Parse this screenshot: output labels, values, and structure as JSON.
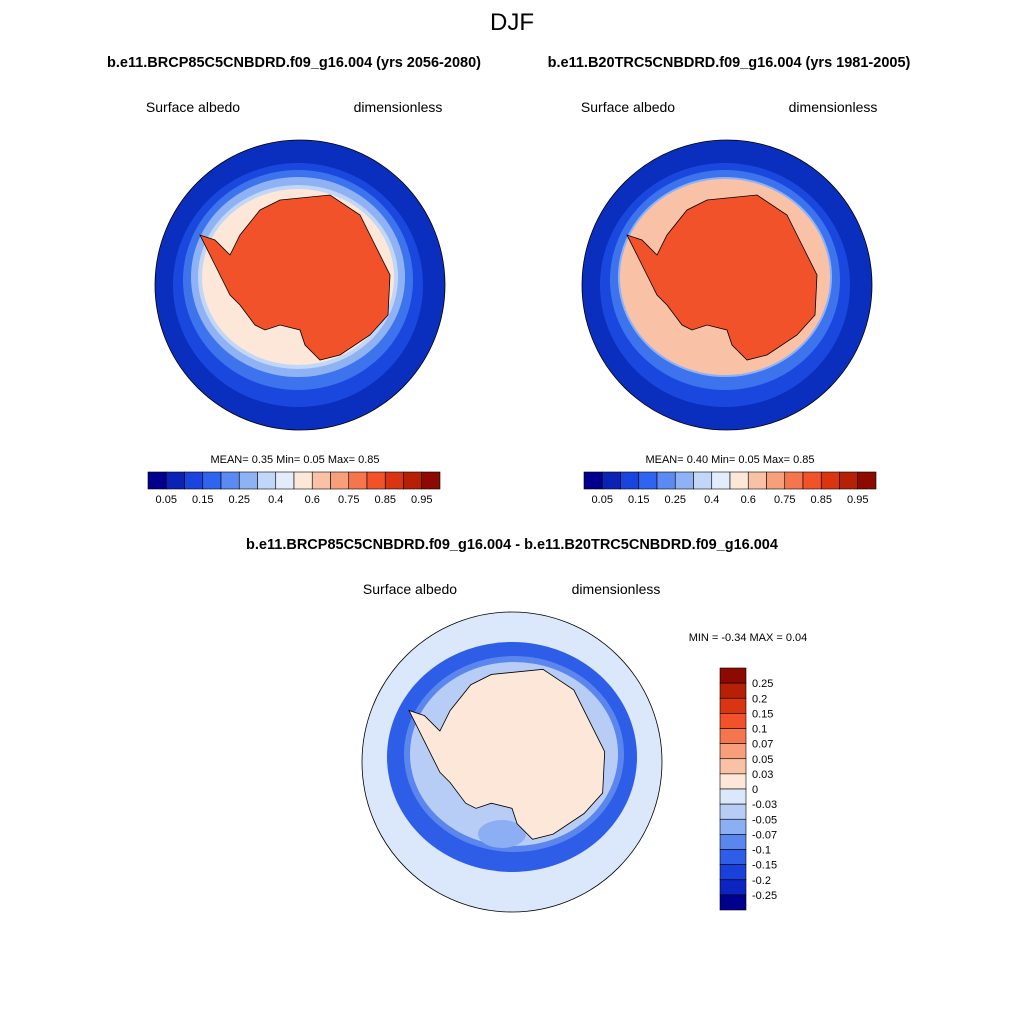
{
  "title": "DJF",
  "panels": [
    {
      "title": "b.e11.BRCP85C5CNBDRD.f09_g16.004 (yrs 2056-2080)",
      "left_label": "Surface albedo",
      "right_label": "dimensionless",
      "stats": "MEAN=   0.35  Min=   0.05  Max=   0.85"
    },
    {
      "title": "b.e11.B20TRC5CNBDRD.f09_g16.004 (yrs 1981-2005)",
      "left_label": "Surface albedo",
      "right_label": "dimensionless",
      "stats": "MEAN=   0.40  Min=   0.05  Max=   0.85"
    },
    {
      "title": "b.e11.BRCP85C5CNBDRD.f09_g16.004 - b.e11.B20TRC5CNBDRD.f09_g16.004",
      "left_label": "Surface albedo",
      "right_label": "dimensionless",
      "stats": "MIN =  -0.34 MAX =   0.04"
    }
  ],
  "colorbar": {
    "colors": [
      "#00008c",
      "#0a23b4",
      "#1a44dd",
      "#2e64f0",
      "#5a8af2",
      "#8fb2f5",
      "#c2d6f8",
      "#e2ecfb",
      "#fde7d9",
      "#f9c2a6",
      "#f79e7a",
      "#f5764c",
      "#f2522a",
      "#d93510",
      "#b62005",
      "#8c0a00"
    ],
    "labels": [
      "0.05",
      "0.15",
      "0.25",
      "0.4",
      "0.6",
      "0.75",
      "0.85",
      "0.95"
    ]
  },
  "diff_colorbar": {
    "colors": [
      "#8c0a00",
      "#b62005",
      "#d93510",
      "#f2522a",
      "#f5764c",
      "#f79e7a",
      "#f9c2a6",
      "#fde7d9",
      "#dbe8fb",
      "#b7cdf6",
      "#8caef3",
      "#5a86ee",
      "#2e5de8",
      "#1a40dc",
      "#0a25c0",
      "#00008c"
    ],
    "labels": [
      "0.25",
      "0.2",
      "0.15",
      "0.1",
      "0.07",
      "0.05",
      "0.03",
      "0",
      "-0.03",
      "-0.05",
      "-0.07",
      "-0.1",
      "-0.15",
      "-0.2",
      "-0.25"
    ]
  }
}
